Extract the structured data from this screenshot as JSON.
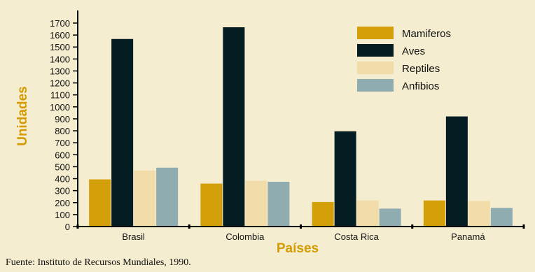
{
  "chart_data": {
    "type": "bar",
    "title": "",
    "xlabel": "Países",
    "ylabel": "Unidades",
    "categories": [
      "Brasil",
      "Colombia",
      "Costa Rica",
      "Panamá"
    ],
    "series": [
      {
        "name": "Mamiferos",
        "color": "#d4a00a",
        "values": [
          394,
          359,
          205,
          218
        ]
      },
      {
        "name": "Aves",
        "color": "#041d22",
        "values": [
          1567,
          1665,
          796,
          920
        ]
      },
      {
        "name": "Reptiles",
        "color": "#f2dcaa",
        "values": [
          468,
          383,
          218,
          213
        ]
      },
      {
        "name": "Anfibios",
        "color": "#8fadb1",
        "values": [
          492,
          374,
          150,
          156
        ]
      }
    ],
    "yticks": [
      0,
      100,
      200,
      300,
      400,
      500,
      600,
      700,
      800,
      900,
      1000,
      1100,
      1200,
      1300,
      1400,
      1500,
      1600,
      1700
    ],
    "ylim": [
      0,
      1700
    ],
    "legend_position": "top-right",
    "grid": false
  },
  "source": "Fuente:  Instituto de Recursos Mundiales, 1990."
}
